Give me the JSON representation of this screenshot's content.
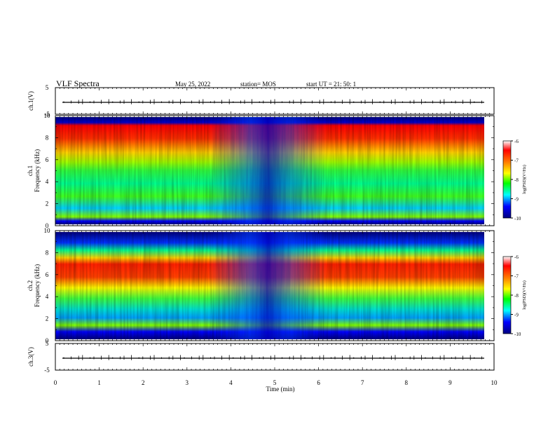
{
  "header": {
    "title": "VLF Spectra",
    "date": "May 25, 2022",
    "station": "station= MOS",
    "start_ut": "start  UT =   21: 50: 1"
  },
  "chart_data": [
    {
      "type": "line",
      "panel": "ch.1",
      "ylabel": "ch.1(V)",
      "yticks": [
        "5",
        "-5"
      ],
      "ylim": [
        -5,
        5
      ],
      "xlim": [
        0,
        10
      ],
      "description_values": {
        "baseline": 0
      }
    },
    {
      "type": "heatmap",
      "panel": "ch.1 spectrogram",
      "ylabel": [
        "ch.1",
        "Frequency (kHz)"
      ],
      "yticks": [
        "0",
        "2",
        "4",
        "6",
        "8",
        "10"
      ],
      "ylim": [
        0,
        10
      ],
      "xlim": [
        0,
        10
      ],
      "colorbar": {
        "label": "log(PSD)(V²/Hz)",
        "ticks": [
          "-6",
          "-7",
          "-8",
          "-9",
          "-10"
        ],
        "range": [
          -10,
          -6
        ]
      }
    },
    {
      "type": "heatmap",
      "panel": "ch.2 spectrogram",
      "ylabel": [
        "ch.2",
        "Frequency (kHz)"
      ],
      "yticks": [
        "0",
        "2",
        "4",
        "6",
        "8",
        "10"
      ],
      "ylim": [
        0,
        10
      ],
      "xlim": [
        0,
        10
      ],
      "colorbar": {
        "label": "log(PSD)(V²/Hz)",
        "ticks": [
          "-6",
          "-7",
          "-8",
          "-9",
          "-10"
        ],
        "range": [
          -10,
          -6
        ]
      }
    },
    {
      "type": "line",
      "panel": "ch.3",
      "ylabel": "ch.3(V)",
      "yticks": [
        "5",
        "-5"
      ],
      "ylim": [
        -5,
        5
      ],
      "xlim": [
        0,
        10
      ],
      "xlabel": "Time  (min)",
      "xticks": [
        "0",
        "1",
        "2",
        "3",
        "4",
        "5",
        "6",
        "7",
        "8",
        "9",
        "10"
      ]
    }
  ],
  "colors": {
    "scale": [
      "#00007f",
      "#0000ff",
      "#00bfff",
      "#00ff80",
      "#7fff00",
      "#ffff00",
      "#ff8000",
      "#ff0000",
      "#ffffff"
    ]
  }
}
